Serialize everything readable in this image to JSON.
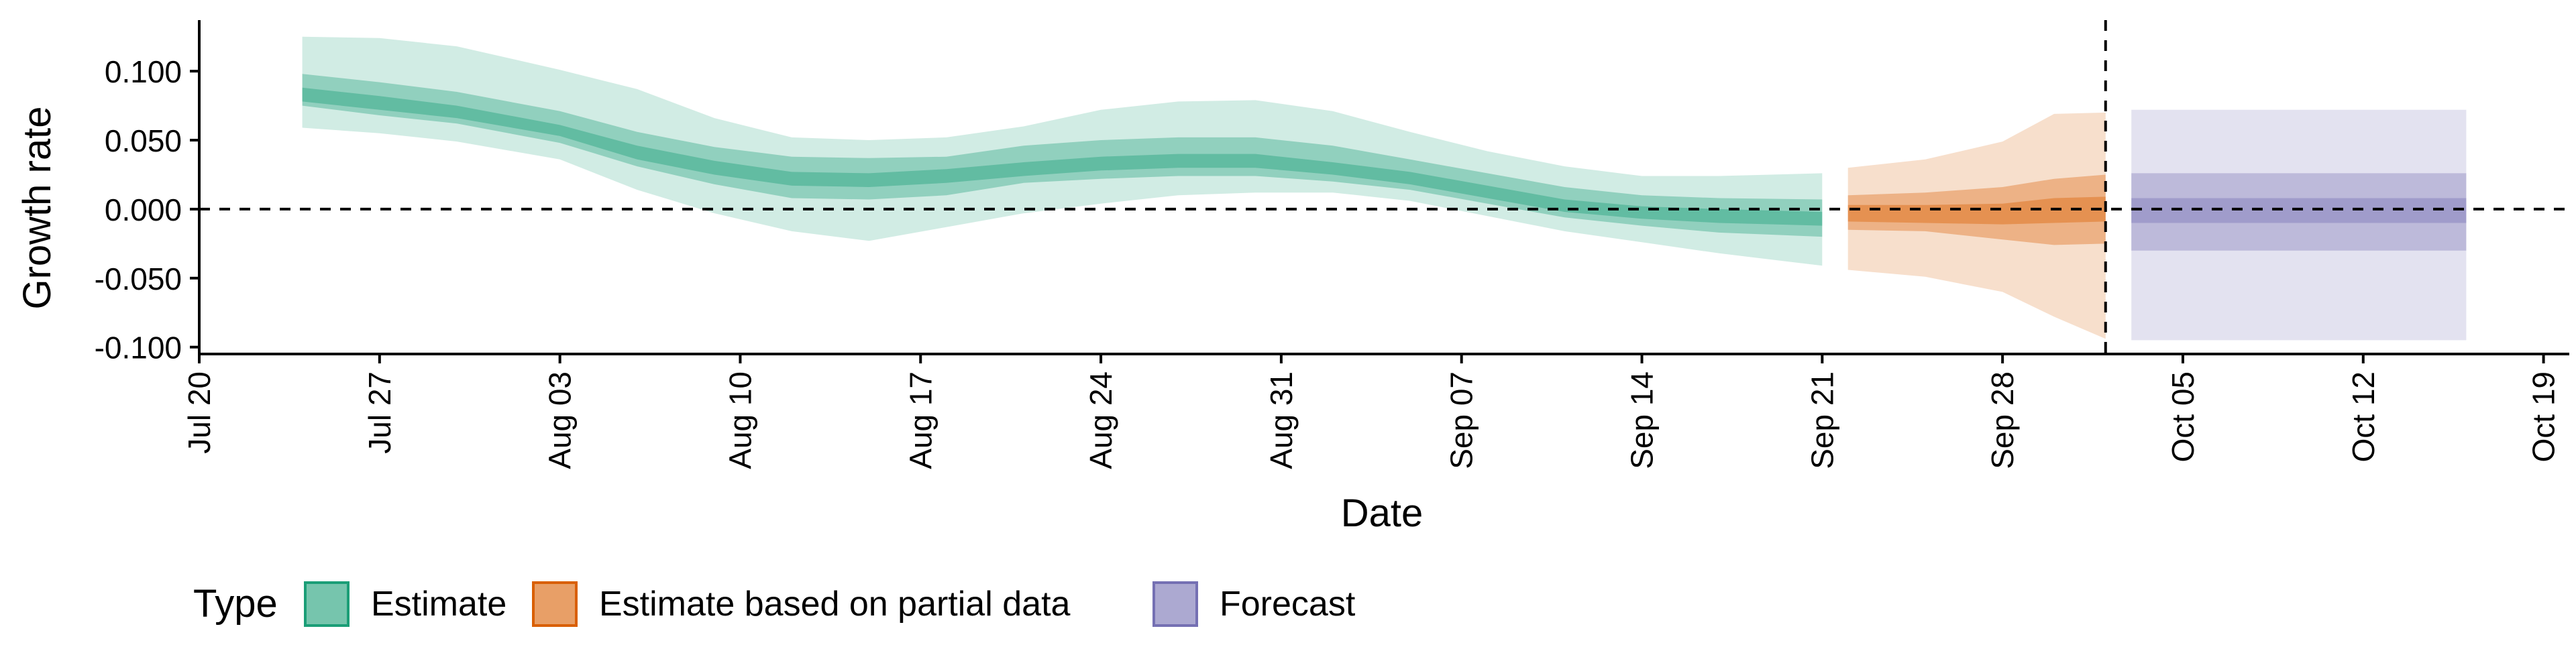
{
  "chart_data": {
    "type": "area",
    "xlabel": "Date",
    "ylabel": "Growth rate",
    "x_ticks": [
      "Jul 20",
      "Jul 27",
      "Aug 03",
      "Aug 10",
      "Aug 17",
      "Aug 24",
      "Aug 31",
      "Sep 07",
      "Sep 14",
      "Sep 21",
      "Sep 28",
      "Oct 05",
      "Oct 12",
      "Oct 19"
    ],
    "x_tick_dates": [
      "2020-07-20",
      "2020-07-27",
      "2020-08-03",
      "2020-08-10",
      "2020-08-17",
      "2020-08-24",
      "2020-08-31",
      "2020-09-07",
      "2020-09-14",
      "2020-09-21",
      "2020-09-28",
      "2020-10-05",
      "2020-10-12",
      "2020-10-19"
    ],
    "y_ticks": [
      "0.100",
      "0.050",
      "0.000",
      "-0.050",
      "-0.100"
    ],
    "y_tick_values": [
      0.1,
      0.05,
      0.0,
      -0.05,
      -0.1
    ],
    "xlim": [
      "2020-07-20",
      "2020-10-20"
    ],
    "ylim": [
      -0.105,
      0.137
    ],
    "grid": false,
    "reference_lines": [
      {
        "orientation": "horizontal",
        "value": 0.0,
        "style": "dashed"
      },
      {
        "orientation": "vertical",
        "value": "2020-10-02",
        "style": "dashed"
      }
    ],
    "legend": {
      "title": "Type",
      "placement": "bottom-left",
      "entries": [
        {
          "label": "Estimate",
          "color": "#1b9e77"
        },
        {
          "label": "Estimate based on partial data",
          "color": "#d95f02"
        },
        {
          "label": "Forecast",
          "color": "#7570b3"
        }
      ]
    },
    "series": [
      {
        "name": "Estimate",
        "color": "#1b9e77",
        "points": [
          {
            "x": "2020-07-24",
            "lo90": 0.059,
            "lo50": 0.075,
            "lo20": 0.078,
            "hi20": 0.088,
            "hi50": 0.098,
            "hi90": 0.125
          },
          {
            "x": "2020-07-27",
            "lo90": 0.055,
            "lo50": 0.068,
            "lo20": 0.072,
            "hi20": 0.082,
            "hi50": 0.092,
            "hi90": 0.124
          },
          {
            "x": "2020-07-30",
            "lo90": 0.049,
            "lo50": 0.062,
            "lo20": 0.066,
            "hi20": 0.075,
            "hi50": 0.085,
            "hi90": 0.118
          },
          {
            "x": "2020-08-03",
            "lo90": 0.036,
            "lo50": 0.048,
            "lo20": 0.053,
            "hi20": 0.061,
            "hi50": 0.071,
            "hi90": 0.101
          },
          {
            "x": "2020-08-06",
            "lo90": 0.014,
            "lo50": 0.031,
            "lo20": 0.036,
            "hi20": 0.046,
            "hi50": 0.056,
            "hi90": 0.087
          },
          {
            "x": "2020-08-09",
            "lo90": -0.003,
            "lo50": 0.018,
            "lo20": 0.025,
            "hi20": 0.035,
            "hi50": 0.045,
            "hi90": 0.066
          },
          {
            "x": "2020-08-12",
            "lo90": -0.016,
            "lo50": 0.008,
            "lo20": 0.017,
            "hi20": 0.027,
            "hi50": 0.038,
            "hi90": 0.052
          },
          {
            "x": "2020-08-15",
            "lo90": -0.023,
            "lo50": 0.007,
            "lo20": 0.016,
            "hi20": 0.026,
            "hi50": 0.037,
            "hi90": 0.05
          },
          {
            "x": "2020-08-18",
            "lo90": -0.013,
            "lo50": 0.01,
            "lo20": 0.019,
            "hi20": 0.029,
            "hi50": 0.038,
            "hi90": 0.052
          },
          {
            "x": "2020-08-21",
            "lo90": -0.003,
            "lo50": 0.019,
            "lo20": 0.024,
            "hi20": 0.034,
            "hi50": 0.046,
            "hi90": 0.06
          },
          {
            "x": "2020-08-24",
            "lo90": 0.004,
            "lo50": 0.022,
            "lo20": 0.028,
            "hi20": 0.038,
            "hi50": 0.05,
            "hi90": 0.072
          },
          {
            "x": "2020-08-27",
            "lo90": 0.01,
            "lo50": 0.024,
            "lo20": 0.03,
            "hi20": 0.04,
            "hi50": 0.052,
            "hi90": 0.078
          },
          {
            "x": "2020-08-30",
            "lo90": 0.012,
            "lo50": 0.024,
            "lo20": 0.03,
            "hi20": 0.04,
            "hi50": 0.052,
            "hi90": 0.079
          },
          {
            "x": "2020-09-02",
            "lo90": 0.012,
            "lo50": 0.02,
            "lo20": 0.025,
            "hi20": 0.034,
            "hi50": 0.046,
            "hi90": 0.071
          },
          {
            "x": "2020-09-05",
            "lo90": 0.006,
            "lo50": 0.014,
            "lo20": 0.018,
            "hi20": 0.027,
            "hi50": 0.036,
            "hi90": 0.056
          },
          {
            "x": "2020-09-08",
            "lo90": -0.005,
            "lo50": 0.004,
            "lo20": 0.008,
            "hi20": 0.017,
            "hi50": 0.026,
            "hi90": 0.042
          },
          {
            "x": "2020-09-11",
            "lo90": -0.016,
            "lo50": -0.006,
            "lo20": -0.002,
            "hi20": 0.007,
            "hi50": 0.016,
            "hi90": 0.031
          },
          {
            "x": "2020-09-14",
            "lo90": -0.024,
            "lo50": -0.012,
            "lo20": -0.007,
            "hi20": 0.002,
            "hi50": 0.01,
            "hi90": 0.024
          },
          {
            "x": "2020-09-17",
            "lo90": -0.032,
            "lo50": -0.017,
            "lo20": -0.01,
            "hi20": 0.0,
            "hi50": 0.008,
            "hi90": 0.024
          },
          {
            "x": "2020-09-21",
            "lo90": -0.041,
            "lo50": -0.02,
            "lo20": -0.012,
            "hi20": -0.002,
            "hi50": 0.007,
            "hi90": 0.026
          }
        ]
      },
      {
        "name": "Estimate based on partial data",
        "color": "#d95f02",
        "points": [
          {
            "x": "2020-09-22",
            "lo90": -0.044,
            "lo50": -0.015,
            "lo20": -0.009,
            "hi20": 0.003,
            "hi50": 0.01,
            "hi90": 0.03
          },
          {
            "x": "2020-09-25",
            "lo90": -0.049,
            "lo50": -0.016,
            "lo20": -0.01,
            "hi20": 0.003,
            "hi50": 0.012,
            "hi90": 0.036
          },
          {
            "x": "2020-09-28",
            "lo90": -0.06,
            "lo50": -0.022,
            "lo20": -0.011,
            "hi20": 0.004,
            "hi50": 0.016,
            "hi90": 0.049
          },
          {
            "x": "2020-09-30",
            "lo90": -0.078,
            "lo50": -0.026,
            "lo20": -0.01,
            "hi20": 0.008,
            "hi50": 0.022,
            "hi90": 0.069
          },
          {
            "x": "2020-10-02",
            "lo90": -0.094,
            "lo50": -0.025,
            "lo20": -0.009,
            "hi20": 0.009,
            "hi50": 0.025,
            "hi90": 0.07
          }
        ]
      },
      {
        "name": "Forecast",
        "color": "#7570b3",
        "points": [
          {
            "x": "2020-10-03",
            "lo90": -0.095,
            "lo50": -0.03,
            "lo20": -0.01,
            "hi20": 0.008,
            "hi50": 0.026,
            "hi90": 0.072
          },
          {
            "x": "2020-10-16",
            "lo90": -0.095,
            "lo50": -0.03,
            "lo20": -0.01,
            "hi20": 0.008,
            "hi50": 0.026,
            "hi90": 0.072
          }
        ]
      }
    ]
  }
}
